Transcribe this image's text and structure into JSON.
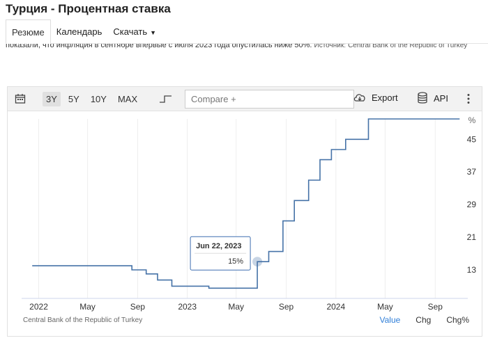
{
  "page": {
    "title": "Турция - Процентная ставка",
    "tabs": [
      {
        "label": "Резюме",
        "active": true
      },
      {
        "label": "Календарь"
      },
      {
        "label": "Скачать"
      }
    ],
    "description": "показали, что инфляция в сентябре впервые с июля 2023 года опустилась ниже 50%.",
    "source_prefix": "Источник:",
    "source_name": "Central Bank of the Republic of Turkey"
  },
  "toolbar": {
    "ranges": [
      {
        "label": "3Y",
        "active": true
      },
      {
        "label": "5Y"
      },
      {
        "label": "10Y"
      },
      {
        "label": "MAX"
      }
    ],
    "compare_placeholder": "Compare +",
    "export_label": "Export",
    "api_label": "API"
  },
  "chart_data": {
    "type": "line",
    "unit": "%",
    "x_tick_labels": [
      "2022",
      "May",
      "Sep",
      "2023",
      "May",
      "Sep",
      "2024",
      "May",
      "Sep"
    ],
    "y_tick_labels": [
      "13",
      "21",
      "29",
      "37",
      "45"
    ],
    "ylim": [
      6,
      50
    ],
    "xlim": [
      "2021-11-20",
      "2024-11-20"
    ],
    "series": [
      {
        "color": "#4572a7",
        "points": [
          [
            "2021-12-16",
            14
          ],
          [
            "2022-08-18",
            14
          ],
          [
            "2022-08-18",
            13
          ],
          [
            "2022-09-22",
            13
          ],
          [
            "2022-09-22",
            12
          ],
          [
            "2022-10-20",
            12
          ],
          [
            "2022-10-20",
            10.5
          ],
          [
            "2022-11-24",
            10.5
          ],
          [
            "2022-11-24",
            9
          ],
          [
            "2023-02-23",
            9
          ],
          [
            "2023-02-23",
            8.5
          ],
          [
            "2023-06-22",
            8.5
          ],
          [
            "2023-06-22",
            15
          ],
          [
            "2023-07-20",
            15
          ],
          [
            "2023-07-20",
            17.5
          ],
          [
            "2023-08-24",
            17.5
          ],
          [
            "2023-08-24",
            25
          ],
          [
            "2023-09-21",
            25
          ],
          [
            "2023-09-21",
            30
          ],
          [
            "2023-10-26",
            30
          ],
          [
            "2023-10-26",
            35
          ],
          [
            "2023-11-23",
            35
          ],
          [
            "2023-11-23",
            40
          ],
          [
            "2023-12-21",
            40
          ],
          [
            "2023-12-21",
            42.5
          ],
          [
            "2024-01-25",
            42.5
          ],
          [
            "2024-01-25",
            45
          ],
          [
            "2024-03-21",
            45
          ],
          [
            "2024-03-21",
            50
          ],
          [
            "2024-10-31",
            50
          ]
        ]
      }
    ],
    "tooltip": {
      "date": "Jun 22, 2023",
      "value": "15%"
    },
    "grid": true
  },
  "footer": {
    "source": "Central Bank of the Republic of Turkey",
    "tabs": [
      {
        "label": "Value",
        "active": true
      },
      {
        "label": "Chg"
      },
      {
        "label": "Chg%"
      }
    ]
  }
}
